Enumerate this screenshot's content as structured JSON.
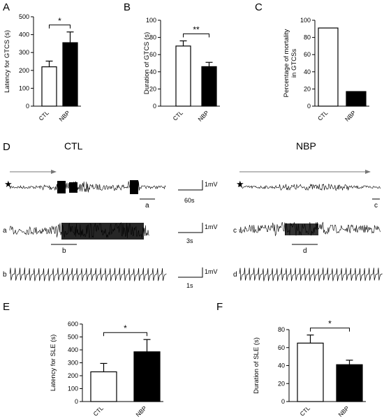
{
  "chart_data": [
    {
      "panel": "A",
      "type": "bar",
      "ylabel": "Latency for GTCS (s)",
      "ylim": [
        0,
        500
      ],
      "yticks": [
        0,
        100,
        200,
        300,
        400,
        500
      ],
      "categories": [
        "CTL",
        "NBP"
      ],
      "values": [
        220,
        355
      ],
      "errors": [
        32,
        60
      ],
      "fills": [
        "#ffffff",
        "#000000"
      ],
      "significance": "*"
    },
    {
      "panel": "B",
      "type": "bar",
      "ylabel": "Duration of GTCS (s)",
      "ylim": [
        0,
        100
      ],
      "yticks": [
        0,
        20,
        40,
        60,
        80,
        100
      ],
      "categories": [
        "CTL",
        "NBP"
      ],
      "values": [
        70,
        46
      ],
      "errors": [
        6,
        5
      ],
      "fills": [
        "#ffffff",
        "#000000"
      ],
      "significance": "**"
    },
    {
      "panel": "C",
      "type": "bar",
      "ylabel": "Percentage of mortality in GTCSs",
      "ylim": [
        0,
        100
      ],
      "yticks": [
        0,
        20,
        40,
        60,
        80,
        100
      ],
      "categories": [
        "CTL",
        "NBP"
      ],
      "values": [
        91,
        17
      ],
      "errors": [
        0,
        0
      ],
      "fills": [
        "#ffffff",
        "#000000"
      ],
      "significance": ""
    },
    {
      "panel": "E",
      "type": "bar",
      "ylabel": "Latency for SLE (s)",
      "ylim": [
        0,
        600
      ],
      "yticks": [
        0,
        100,
        200,
        300,
        400,
        500,
        600
      ],
      "categories": [
        "CTL",
        "NBP"
      ],
      "values": [
        230,
        385
      ],
      "errors": [
        65,
        95
      ],
      "fills": [
        "#ffffff",
        "#000000"
      ],
      "significance": "*"
    },
    {
      "panel": "F",
      "type": "bar",
      "ylabel": "Duration of SLE (s)",
      "ylim": [
        0,
        80
      ],
      "yticks": [
        0,
        20,
        40,
        60,
        80
      ],
      "categories": [
        "CTL",
        "NBP"
      ],
      "values": [
        65,
        41
      ],
      "errors": [
        9,
        5
      ],
      "fills": [
        "#ffffff",
        "#000000"
      ],
      "significance": "*"
    }
  ],
  "eeg": {
    "panel": "D",
    "conditions": [
      "CTL",
      "NBP"
    ],
    "trace_letters": {
      "ctl": [
        "a",
        "b"
      ],
      "nbp": [
        "c",
        "d"
      ],
      "ctl_subsets": [
        "a",
        "b"
      ],
      "nbp_subsets": [
        "c",
        "d"
      ]
    },
    "scale_bars": [
      {
        "time": "60s",
        "amp": "1mV"
      },
      {
        "time": "3s",
        "amp": "1mV"
      },
      {
        "time": "1s",
        "amp": "1mV"
      }
    ],
    "marker": "★"
  },
  "colors": {
    "ink": "#000000",
    "paper": "#ffffff",
    "arrow": "#777777"
  }
}
